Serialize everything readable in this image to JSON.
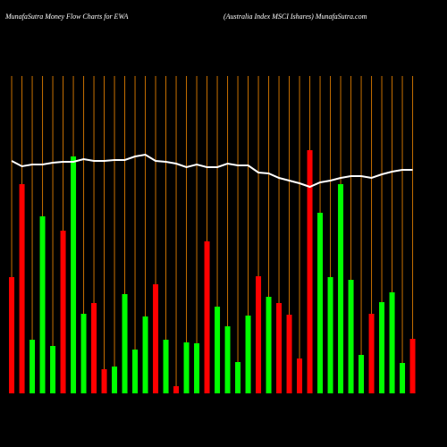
{
  "chart_data": {
    "type": "bar",
    "title": "MunafaSutra  Money Flow  Charts for EWA",
    "subtitle": "(Australia  Index MSCI Ishares) MunafaSutra.com",
    "categories": [
      null,
      null,
      null,
      null,
      null,
      null,
      null,
      null,
      null,
      null,
      null,
      null,
      null,
      null,
      null,
      null,
      null,
      null,
      null,
      null,
      null,
      null,
      null,
      null,
      null,
      null,
      null,
      null,
      null,
      null,
      null,
      null,
      null,
      null,
      null,
      null,
      null,
      null,
      null,
      null
    ],
    "series": [
      {
        "type": "bar",
        "colors": [
          "#ff0000",
          "#ff0000",
          "#00ff00",
          "#00ff00",
          "#00ff00",
          "#ff0000",
          "#00ff00",
          "#00ff00",
          "#ff0000",
          "#ff0000",
          "#00ff00",
          "#00ff00",
          "#00ff00",
          "#00ff00",
          "#ff0000",
          "#00ff00",
          "#ff0000",
          "#00ff00",
          "#00ff00",
          "#ff0000",
          "#00ff00",
          "#00ff00",
          "#00ff00",
          "#00ff00",
          "#ff0000",
          "#00ff00",
          "#ff0000",
          "#ff0000",
          "#ff0000",
          "#ff0000",
          "#00ff00",
          "#00ff00",
          "#00ff00",
          "#00ff00",
          "#00ff00",
          "#ff0000",
          "#00ff00",
          "#00ff00",
          "#00ff00",
          "#ff0000"
        ],
        "values": [
          130,
          234,
          60,
          198,
          53,
          182,
          265,
          89,
          101,
          27,
          30,
          111,
          49,
          86,
          122,
          60,
          8,
          57,
          56,
          170,
          97,
          75,
          35,
          87,
          131,
          108,
          101,
          88,
          39,
          272,
          202,
          130,
          234,
          127,
          43,
          89,
          102,
          113,
          34,
          61
        ]
      },
      {
        "type": "line",
        "color": "#ffffff",
        "values": [
          260,
          254,
          256,
          256,
          258,
          259,
          259,
          262,
          260,
          260,
          261,
          261,
          265,
          267,
          260,
          259,
          257,
          253,
          256,
          253,
          253,
          257,
          255,
          255,
          247,
          246,
          241,
          238,
          235,
          231,
          236,
          238,
          241,
          243,
          243,
          241,
          245,
          248,
          250,
          250
        ]
      }
    ],
    "ylim": [
      0,
      355
    ],
    "grid": true,
    "grid_color": "#c87000",
    "background": "#000000"
  }
}
